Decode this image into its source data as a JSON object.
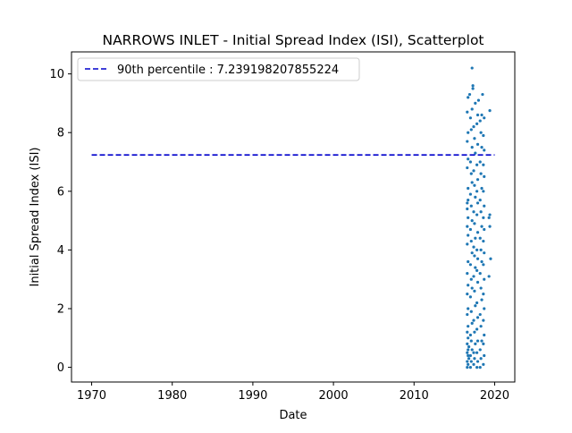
{
  "chart_data": {
    "type": "scatter",
    "title": "NARROWS INLET - Initial Spread Index (ISI), Scatterplot",
    "xlabel": "Date",
    "ylabel": "Initial Spread Index (ISI)",
    "xlim": [
      1967.5,
      2022.5
    ],
    "ylim": [
      -0.5,
      10.75
    ],
    "x_ticks": [
      1970,
      1980,
      1990,
      2000,
      2010,
      2020
    ],
    "y_ticks": [
      0,
      2,
      4,
      6,
      8,
      10
    ],
    "grid": false,
    "legend": {
      "placement": "top-left",
      "entries": [
        "90th percentile : 7.239198207855224"
      ]
    },
    "reference_line": {
      "name": "90th percentile : 7.239198207855224",
      "y": 7.239198207855224,
      "x_range": [
        1970,
        2020
      ],
      "style": "dashed",
      "color": "#0000cc"
    },
    "series": [
      {
        "color": "#1f77b4",
        "points": [
          [
            2016.6,
            0.0
          ],
          [
            2016.7,
            0.1
          ],
          [
            2016.6,
            0.2
          ],
          [
            2016.8,
            0.3
          ],
          [
            2016.7,
            0.4
          ],
          [
            2016.6,
            0.5
          ],
          [
            2016.7,
            0.6
          ],
          [
            2016.8,
            0.7
          ],
          [
            2016.6,
            0.8
          ],
          [
            2016.7,
            1.0
          ],
          [
            2016.6,
            1.2
          ],
          [
            2016.7,
            1.4
          ],
          [
            2016.6,
            1.8
          ],
          [
            2016.7,
            2.0
          ],
          [
            2016.6,
            2.5
          ],
          [
            2016.7,
            2.8
          ],
          [
            2016.6,
            3.2
          ],
          [
            2016.7,
            3.6
          ],
          [
            2016.6,
            4.2
          ],
          [
            2016.7,
            4.5
          ],
          [
            2016.6,
            4.8
          ],
          [
            2016.7,
            5.1
          ],
          [
            2016.6,
            5.4
          ],
          [
            2016.7,
            5.7
          ],
          [
            2016.6,
            5.6
          ],
          [
            2016.7,
            6.1
          ],
          [
            2016.6,
            6.8
          ],
          [
            2016.7,
            7.1
          ],
          [
            2016.6,
            7.7
          ],
          [
            2016.7,
            8.0
          ],
          [
            2016.6,
            8.7
          ],
          [
            2016.7,
            9.2
          ],
          [
            2016.9,
            9.3
          ],
          [
            2017.0,
            0.0
          ],
          [
            2017.1,
            0.2
          ],
          [
            2017.0,
            0.4
          ],
          [
            2017.2,
            0.6
          ],
          [
            2017.1,
            0.9
          ],
          [
            2017.0,
            1.1
          ],
          [
            2017.2,
            1.5
          ],
          [
            2017.1,
            1.9
          ],
          [
            2017.0,
            2.4
          ],
          [
            2017.2,
            2.7
          ],
          [
            2017.1,
            3.0
          ],
          [
            2017.0,
            3.5
          ],
          [
            2017.2,
            3.9
          ],
          [
            2017.1,
            4.3
          ],
          [
            2017.0,
            4.7
          ],
          [
            2017.2,
            5.0
          ],
          [
            2017.1,
            5.5
          ],
          [
            2017.0,
            5.9
          ],
          [
            2017.2,
            6.3
          ],
          [
            2017.1,
            6.6
          ],
          [
            2017.0,
            7.0
          ],
          [
            2017.2,
            7.5
          ],
          [
            2017.1,
            8.1
          ],
          [
            2017.0,
            8.5
          ],
          [
            2017.2,
            8.8
          ],
          [
            2017.3,
            9.5
          ],
          [
            2017.3,
            9.6
          ],
          [
            2017.2,
            10.2
          ],
          [
            2017.4,
            0.1
          ],
          [
            2017.5,
            0.3
          ],
          [
            2017.4,
            0.5
          ],
          [
            2017.6,
            0.8
          ],
          [
            2017.5,
            1.2
          ],
          [
            2017.4,
            1.6
          ],
          [
            2017.6,
            2.1
          ],
          [
            2017.5,
            2.6
          ],
          [
            2017.4,
            3.1
          ],
          [
            2017.6,
            3.4
          ],
          [
            2017.5,
            3.8
          ],
          [
            2017.4,
            4.1
          ],
          [
            2017.6,
            4.4
          ],
          [
            2017.5,
            4.9
          ],
          [
            2017.4,
            5.3
          ],
          [
            2017.6,
            5.8
          ],
          [
            2017.5,
            6.2
          ],
          [
            2017.4,
            6.7
          ],
          [
            2017.6,
            7.3
          ],
          [
            2017.5,
            7.8
          ],
          [
            2017.4,
            8.2
          ],
          [
            2017.6,
            9.0
          ],
          [
            2017.8,
            0.0
          ],
          [
            2017.9,
            0.2
          ],
          [
            2017.8,
            0.5
          ],
          [
            2017.9,
            0.9
          ],
          [
            2017.8,
            1.3
          ],
          [
            2017.9,
            1.7
          ],
          [
            2017.8,
            2.2
          ],
          [
            2017.9,
            2.9
          ],
          [
            2017.8,
            3.3
          ],
          [
            2017.9,
            3.7
          ],
          [
            2017.8,
            4.0
          ],
          [
            2017.9,
            4.6
          ],
          [
            2017.8,
            5.2
          ],
          [
            2017.9,
            5.6
          ],
          [
            2017.8,
            6.0
          ],
          [
            2017.9,
            6.4
          ],
          [
            2017.8,
            6.9
          ],
          [
            2017.9,
            7.6
          ],
          [
            2017.8,
            8.3
          ],
          [
            2017.9,
            8.6
          ],
          [
            2018.0,
            9.1
          ],
          [
            2018.2,
            0.0
          ],
          [
            2018.3,
            0.3
          ],
          [
            2018.2,
            0.6
          ],
          [
            2018.4,
            0.9
          ],
          [
            2018.3,
            1.4
          ],
          [
            2018.2,
            1.8
          ],
          [
            2018.4,
            2.3
          ],
          [
            2018.3,
            2.7
          ],
          [
            2018.2,
            3.2
          ],
          [
            2018.4,
            3.6
          ],
          [
            2018.3,
            4.0
          ],
          [
            2018.2,
            4.4
          ],
          [
            2018.4,
            4.8
          ],
          [
            2018.3,
            5.3
          ],
          [
            2018.2,
            5.7
          ],
          [
            2018.4,
            6.1
          ],
          [
            2018.3,
            6.6
          ],
          [
            2018.2,
            7.0
          ],
          [
            2018.4,
            7.5
          ],
          [
            2018.3,
            8.0
          ],
          [
            2018.2,
            8.4
          ],
          [
            2018.4,
            8.6
          ],
          [
            2018.5,
            9.3
          ],
          [
            2018.6,
            0.1
          ],
          [
            2018.7,
            0.4
          ],
          [
            2018.6,
            0.8
          ],
          [
            2018.7,
            1.1
          ],
          [
            2018.6,
            1.6
          ],
          [
            2018.7,
            2.0
          ],
          [
            2018.6,
            2.5
          ],
          [
            2018.7,
            3.0
          ],
          [
            2018.6,
            3.5
          ],
          [
            2018.7,
            3.9
          ],
          [
            2018.6,
            4.3
          ],
          [
            2018.7,
            4.7
          ],
          [
            2018.6,
            5.1
          ],
          [
            2018.7,
            5.5
          ],
          [
            2018.6,
            6.0
          ],
          [
            2018.7,
            6.5
          ],
          [
            2018.6,
            6.9
          ],
          [
            2018.7,
            7.4
          ],
          [
            2018.6,
            7.9
          ],
          [
            2018.7,
            8.5
          ],
          [
            2019.4,
            8.75
          ],
          [
            2019.3,
            5.1
          ],
          [
            2019.4,
            5.2
          ],
          [
            2019.4,
            4.8
          ],
          [
            2019.5,
            3.7
          ],
          [
            2019.3,
            3.1
          ]
        ]
      }
    ]
  }
}
